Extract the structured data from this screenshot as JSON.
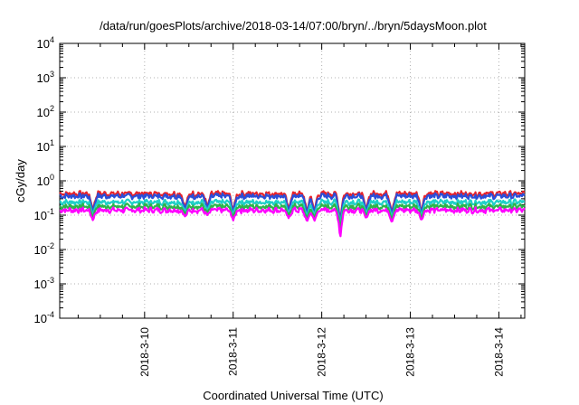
{
  "chart_data": {
    "type": "line",
    "title": "/data/run/goesPlots/archive/2018-03-14/07:00/bryn/../bryn/5daysMoon.plot",
    "xlabel": "Coordinated Universal Time (UTC)",
    "ylabel": "cGy/day",
    "yscale": "log",
    "ylim": [
      0.0001,
      10000
    ],
    "y_ticks": [
      {
        "base": "10",
        "exp": "-4"
      },
      {
        "base": "10",
        "exp": "-3"
      },
      {
        "base": "10",
        "exp": "-2"
      },
      {
        "base": "10",
        "exp": "-1"
      },
      {
        "base": "10",
        "exp": "0"
      },
      {
        "base": "10",
        "exp": "1"
      },
      {
        "base": "10",
        "exp": "2"
      },
      {
        "base": "10",
        "exp": "3"
      },
      {
        "base": "10",
        "exp": "4"
      }
    ],
    "x_range": [
      "2018-03-09 01:00",
      "2018-03-14 07:00"
    ],
    "x_ticks": [
      "2018-3-10",
      "2018-3-11",
      "2018-3-12",
      "2018-3-13",
      "2018-3-14"
    ],
    "grid": true,
    "series": [
      {
        "color": "#e8222a",
        "level": 0.42
      },
      {
        "color": "#2b4ed8",
        "level": 0.36
      },
      {
        "color": "#1fd0c8",
        "level": 0.24
      },
      {
        "color": "#2cb44a",
        "level": 0.18
      },
      {
        "color": "#ff00ff",
        "level": 0.14
      }
    ],
    "dips": [
      {
        "date": "2018-03-09 10:00",
        "value": 0.07
      },
      {
        "date": "2018-03-10 11:00",
        "value": 0.09
      },
      {
        "date": "2018-03-10 17:00",
        "value": 0.1
      },
      {
        "date": "2018-03-11 00:00",
        "value": 0.07
      },
      {
        "date": "2018-03-11 15:00",
        "value": 0.08
      },
      {
        "date": "2018-03-11 20:00",
        "value": 0.06
      },
      {
        "date": "2018-03-11 22:00",
        "value": 0.065
      },
      {
        "date": "2018-03-12 05:00",
        "value": 0.016
      },
      {
        "date": "2018-03-12 12:00",
        "value": 0.08
      },
      {
        "date": "2018-03-12 19:00",
        "value": 0.06
      },
      {
        "date": "2018-03-13 03:00",
        "value": 0.07
      }
    ]
  }
}
